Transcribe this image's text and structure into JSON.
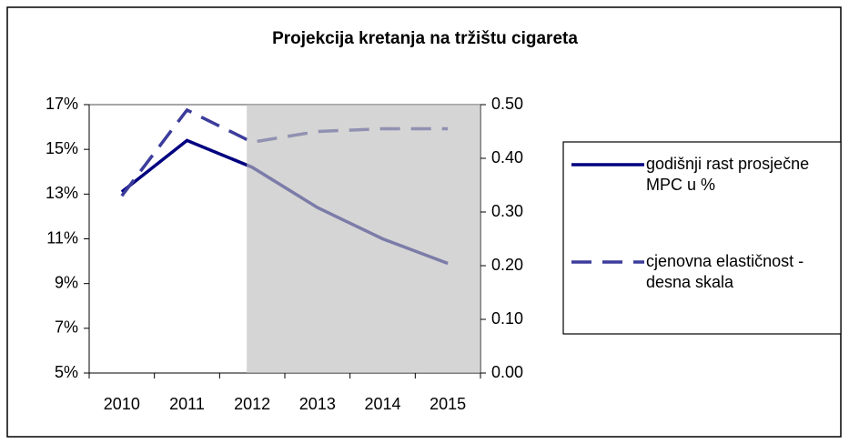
{
  "chart_data": {
    "type": "line",
    "title": "Projekcija kretanja na tržištu cigareta",
    "categories": [
      "2010",
      "2011",
      "2012",
      "2013",
      "2014",
      "2015"
    ],
    "series": [
      {
        "name": "godišnji rast prosječne  MPC u %",
        "color": "#000080",
        "dash": false,
        "axis": "y",
        "values": [
          13.1,
          15.4,
          14.2,
          12.4,
          11.0,
          9.9
        ]
      },
      {
        "name": "cjenovna elastičnost - desna skala",
        "color": "#3c3c9c",
        "dash": true,
        "axis": "y2",
        "values": [
          0.33,
          0.49,
          0.43,
          0.45,
          0.455,
          0.455
        ]
      }
    ],
    "ylim": [
      5,
      17
    ],
    "yticks": [
      {
        "value": 5,
        "label": "5%"
      },
      {
        "value": 7,
        "label": "7%"
      },
      {
        "value": 9,
        "label": "9%"
      },
      {
        "value": 11,
        "label": "11%"
      },
      {
        "value": 13,
        "label": "13%"
      },
      {
        "value": 15,
        "label": "15%"
      },
      {
        "value": 17,
        "label": "17%"
      }
    ],
    "y2lim": [
      0,
      0.5
    ],
    "y2ticks": [
      {
        "value": 0,
        "label": "0.00"
      },
      {
        "value": 0.1,
        "label": "0.10"
      },
      {
        "value": 0.2,
        "label": "0.20"
      },
      {
        "value": 0.3,
        "label": "0.30"
      },
      {
        "value": 0.4,
        "label": "0.40"
      },
      {
        "value": 0.5,
        "label": "0.50"
      }
    ],
    "shaded_from": "2012",
    "legend": "right"
  }
}
